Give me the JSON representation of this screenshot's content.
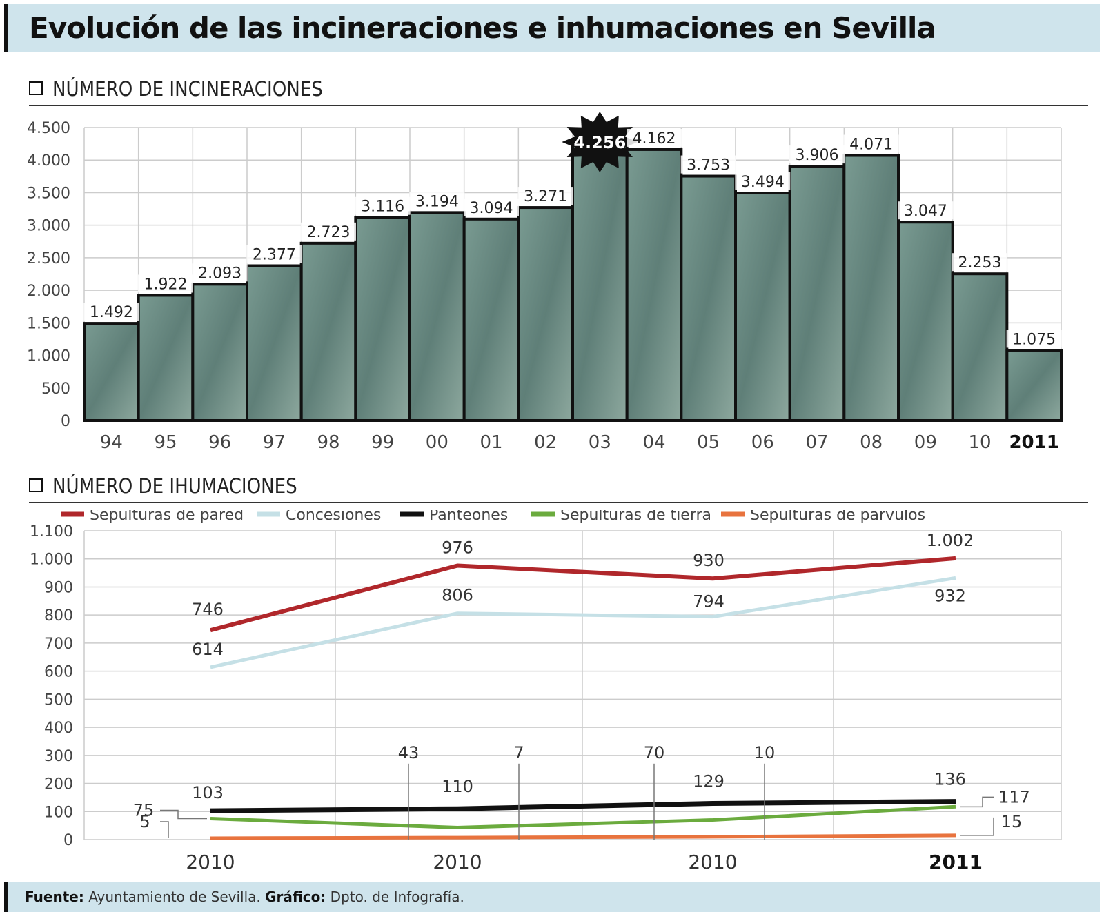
{
  "title": "Evolución de las incineraciones e inhumaciones en Sevilla",
  "section1": {
    "label": "NÚMERO DE INCINERACIONES"
  },
  "section2": {
    "label": "NÚMERO DE IHUMACIONES"
  },
  "footer": {
    "source_label": "Fuente:",
    "source": "Ayuntamiento de Sevilla.",
    "graphic_label": "Gráfico:",
    "graphic": "Dpto. de Infografía."
  },
  "colors": {
    "bar_fill": "#6f8f86",
    "bar_fill_alt": "#8aa59a",
    "bar_border": "#111111",
    "grid": "#cccccc",
    "sepulturas_pared": "#b0272b",
    "concesiones": "#c5e0e6",
    "panteones": "#111111",
    "sepulturas_tierra": "#6bab3e",
    "sepulturas_parvulos": "#e8733e",
    "highlight_burst": "#111111"
  },
  "chart_data": [
    {
      "type": "bar",
      "title": "NÚMERO DE INCINERACIONES",
      "categories": [
        "94",
        "95",
        "96",
        "97",
        "98",
        "99",
        "00",
        "01",
        "02",
        "03",
        "04",
        "05",
        "06",
        "07",
        "08",
        "09",
        "10",
        "2011"
      ],
      "values": [
        1492,
        1922,
        2093,
        2377,
        2723,
        3116,
        3194,
        3094,
        3271,
        4256,
        4162,
        3753,
        3494,
        3906,
        4071,
        3047,
        2253,
        1075
      ],
      "value_labels": [
        "1.492",
        "1.922",
        "2.093",
        "2.377",
        "2.723",
        "3.116",
        "3.194",
        "3.094",
        "3.271",
        "4.256",
        "4.162",
        "3.753",
        "3.494",
        "3.906",
        "4.071",
        "3.047",
        "2.253",
        "1.075"
      ],
      "highlight_index": 9,
      "bold_category_index": 17,
      "ylim": [
        0,
        4500
      ],
      "yticks": [
        0,
        500,
        1000,
        1500,
        2000,
        2500,
        3000,
        3500,
        4000,
        4500
      ],
      "ytick_labels": [
        "0",
        "500",
        "1.000",
        "1.500",
        "2.000",
        "2.500",
        "3.000",
        "3.500",
        "4.000",
        "4.500"
      ],
      "grid": true
    },
    {
      "type": "line",
      "title": "NÚMERO DE IHUMACIONES",
      "categories": [
        "2010",
        "2010",
        "2010",
        "2011"
      ],
      "ylim": [
        0,
        1100
      ],
      "yticks": [
        0,
        100,
        200,
        300,
        400,
        500,
        600,
        700,
        800,
        900,
        1000,
        1100
      ],
      "ytick_labels": [
        "0",
        "100",
        "200",
        "300",
        "400",
        "500",
        "600",
        "700",
        "800",
        "900",
        "1.000",
        "1.100"
      ],
      "grid": true,
      "legend_position": "top",
      "series": [
        {
          "name": "Sepulturas de pared",
          "values": [
            746,
            976,
            930,
            1002
          ],
          "labels": [
            "746",
            "976",
            "930",
            "1.002"
          ]
        },
        {
          "name": "Concesiones",
          "values": [
            614,
            806,
            794,
            932
          ],
          "labels": [
            "614",
            "806",
            "794",
            "932"
          ]
        },
        {
          "name": "Panteones",
          "values": [
            103,
            110,
            129,
            136
          ],
          "labels": [
            "103",
            "110",
            "129",
            "136"
          ]
        },
        {
          "name": "Sepulturas de tierra",
          "values": [
            75,
            43,
            70,
            117
          ],
          "labels": [
            "75",
            "43",
            "70",
            "117"
          ]
        },
        {
          "name": "Sepulturas de parvulos",
          "values": [
            5,
            7,
            10,
            15
          ],
          "labels": [
            "5",
            "7",
            "10",
            "15"
          ]
        }
      ]
    }
  ]
}
